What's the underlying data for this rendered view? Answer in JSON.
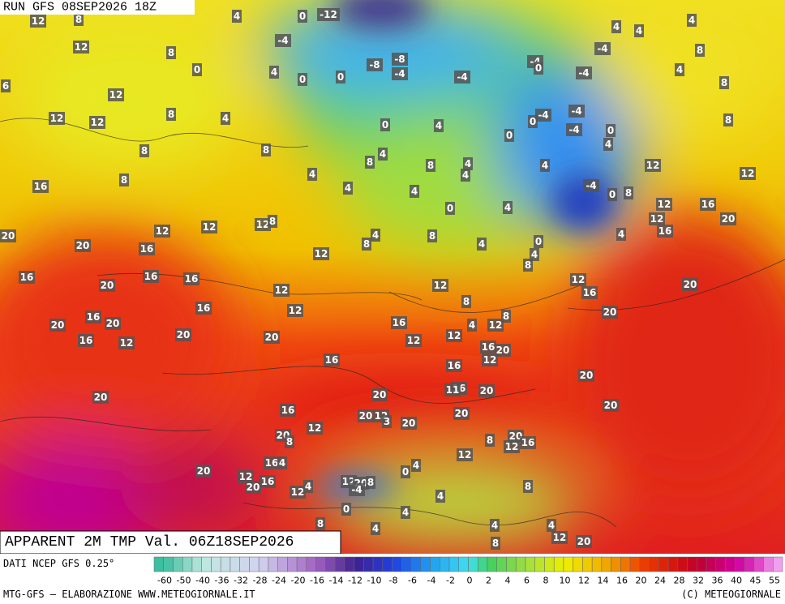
{
  "header": {
    "run": "RUN GFS 08SEP2026 18Z",
    "title": "APPARENT 2M TMP Val. 06Z18SEP2026"
  },
  "footer": {
    "source": "DATI NCEP GFS 0.25°",
    "credit": "MTG-GFS – ELABORAZIONE WWW.METEOGIORNALE.IT",
    "copyright": "(C) METEOGIORNALE"
  },
  "colorbar": {
    "ticks": [
      -60,
      -50,
      -40,
      -36,
      -32,
      -28,
      -24,
      -20,
      -16,
      -14,
      -12,
      -10,
      -8,
      -6,
      -4,
      -2,
      0,
      2,
      4,
      6,
      8,
      10,
      12,
      14,
      16,
      20,
      24,
      28,
      32,
      36,
      40,
      45,
      55
    ]
  },
  "map_labels": [
    12,
    8,
    4,
    0,
    -12,
    4,
    4,
    4,
    12,
    8,
    0,
    -4,
    4,
    0,
    0,
    -8,
    -8,
    -4,
    -4,
    -4,
    0,
    -4,
    8,
    4,
    8,
    -4,
    6,
    12,
    8,
    4,
    12,
    12,
    0,
    4,
    -4,
    0,
    -4,
    -4,
    0,
    0,
    4,
    8,
    8,
    8,
    4,
    8,
    8,
    4,
    4,
    4,
    4,
    12,
    12,
    8,
    16,
    4,
    4,
    -4,
    0,
    8,
    12,
    16,
    0,
    4,
    12,
    20,
    12,
    12,
    8,
    12,
    4,
    8,
    8,
    4,
    0,
    16,
    4,
    20,
    20,
    16,
    12,
    4,
    8,
    16,
    16,
    16,
    12,
    20,
    12,
    16,
    20,
    12,
    16,
    12,
    8,
    20,
    8,
    16,
    20,
    20,
    16,
    4,
    12,
    12,
    12,
    20,
    20,
    16,
    12,
    16,
    20,
    16,
    12,
    16,
    20,
    20,
    16,
    11,
    20,
    20,
    20,
    16,
    20,
    12,
    3,
    20,
    20,
    12,
    20,
    8,
    20,
    12,
    16,
    8,
    12,
    16,
    4,
    20,
    0,
    4,
    12,
    20,
    16,
    12,
    4,
    12,
    20,
    8,
    -4,
    8,
    4,
    0,
    4,
    8,
    4,
    4,
    4,
    12,
    20,
    8
  ]
}
